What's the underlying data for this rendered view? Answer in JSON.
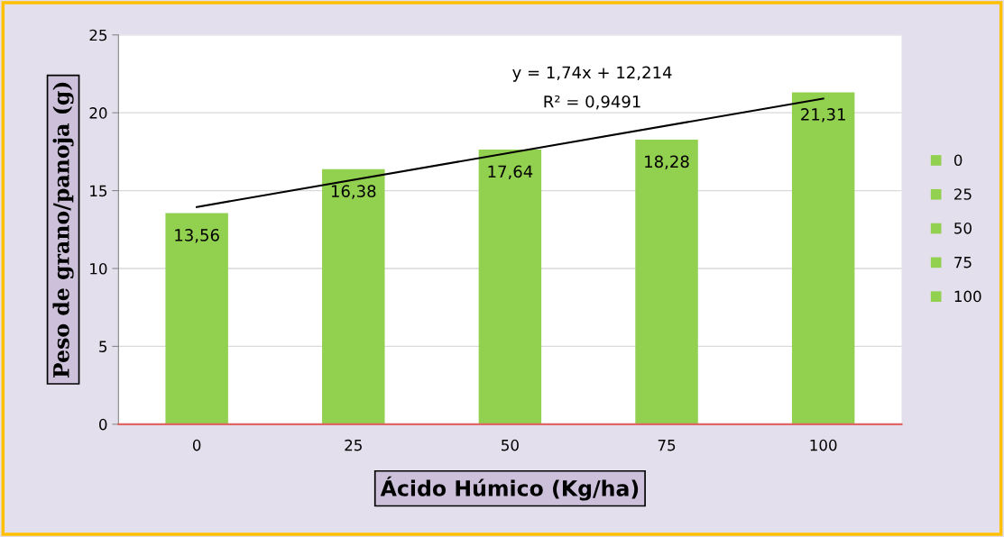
{
  "chart_data": {
    "type": "bar",
    "xlabel": "Ácido Húmico (Kg/ha)",
    "ylabel": "Peso de grano/panoja (g)",
    "categories": [
      "0",
      "25",
      "50",
      "75",
      "100"
    ],
    "series": [
      {
        "name": "0",
        "color": "#92d050",
        "values": [
          13.56,
          null,
          null,
          null,
          null
        ],
        "value_labels": [
          "13,56",
          null,
          null,
          null,
          null
        ]
      },
      {
        "name": "25",
        "color": "#92d050",
        "values": [
          null,
          16.38,
          null,
          null,
          null
        ],
        "value_labels": [
          null,
          "16,38",
          null,
          null,
          null
        ]
      },
      {
        "name": "50",
        "color": "#92d050",
        "values": [
          null,
          null,
          17.64,
          null,
          null
        ],
        "value_labels": [
          null,
          null,
          "17,64",
          null,
          null
        ]
      },
      {
        "name": "75",
        "color": "#92d050",
        "values": [
          null,
          null,
          null,
          18.28,
          null
        ],
        "value_labels": [
          null,
          null,
          null,
          "18,28",
          null
        ]
      },
      {
        "name": "100",
        "color": "#92d050",
        "values": [
          null,
          null,
          null,
          null,
          21.31
        ],
        "value_labels": [
          null,
          null,
          null,
          null,
          "21,31"
        ]
      },
      {
        "type": "line",
        "x": [
          "0",
          "100"
        ],
        "values": [
          13.95,
          20.91
        ],
        "color": "#000000"
      }
    ],
    "annotations": [
      "y = 1,74x + 12,214",
      "R² = 0,9491"
    ],
    "ylim": [
      0,
      25
    ],
    "yticks": [
      0,
      5,
      10,
      15,
      20,
      25
    ],
    "grid": "y",
    "legend": "right"
  }
}
